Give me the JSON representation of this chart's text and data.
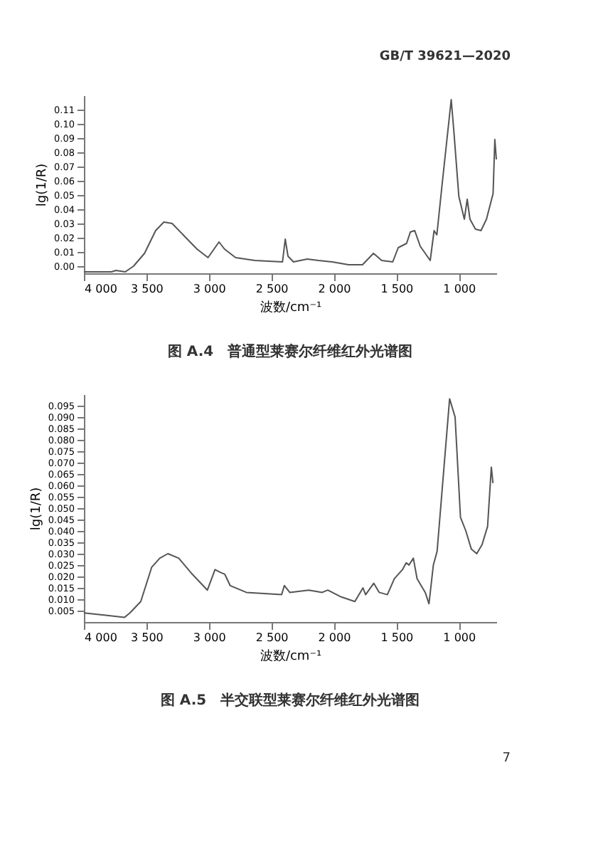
{
  "chart_data": [
    {
      "type": "line",
      "title": "图 A.4　普通型莱赛尔纤维红外光谱图",
      "xlabel": "波数/cm⁻¹",
      "ylabel": "lg(1/R)",
      "annotations": [
        "GB/T 39621—2020"
      ],
      "xlim": [
        4000,
        700
      ],
      "xticks": [
        {
          "value": 4000,
          "label": "4 000"
        },
        {
          "value": 3500,
          "label": "3 500"
        },
        {
          "value": 3000,
          "label": "3 000"
        },
        {
          "value": 2500,
          "label": "2 500"
        },
        {
          "value": 2000,
          "label": "2 000"
        },
        {
          "value": 1500,
          "label": "1 500"
        },
        {
          "value": 1000,
          "label": "1 000"
        }
      ],
      "ylim": [
        -0.005,
        0.12
      ],
      "yticks": [
        {
          "value": 0,
          "label": "0.00"
        },
        {
          "value": 0.01,
          "label": "0.01"
        },
        {
          "value": 0.02,
          "label": "0.02"
        },
        {
          "value": 0.03,
          "label": "0.03"
        },
        {
          "value": 0.04,
          "label": "0.04"
        },
        {
          "value": 0.05,
          "label": "0.05"
        },
        {
          "value": 0.06,
          "label": "0.06"
        },
        {
          "value": 0.07,
          "label": "0.07"
        },
        {
          "value": 0.08,
          "label": "0.08"
        },
        {
          "value": 0.09,
          "label": "0.09"
        },
        {
          "value": 0.1,
          "label": "0.10"
        },
        {
          "value": 0.11,
          "label": "0.11"
        }
      ],
      "grid": false,
      "marker": "none",
      "line_style": "solid",
      "series": [
        {
          "color": "#555555",
          "x": [
            4000,
            3779,
            3744,
            3669,
            3603,
            3515,
            3426,
            3360,
            3294,
            3206,
            3095,
            3007,
            2919,
            2875,
            2786,
            2632,
            2411,
            2389,
            2367,
            2323,
            2213,
            2124,
            2014,
            1882,
            1771,
            1683,
            1617,
            1529,
            1485,
            1418,
            1388,
            1353,
            1309,
            1229,
            1198,
            1176,
            1132,
            1061,
            1040,
            1000,
            956,
            933,
            911,
            867,
            823,
            779,
            726,
            712,
            700
          ],
          "values": [
            -0.004,
            -0.004,
            -0.003,
            -0.004,
            0.0,
            0.009,
            0.025,
            0.031,
            0.03,
            0.022,
            0.012,
            0.006,
            0.017,
            0.012,
            0.006,
            0.004,
            0.003,
            0.019,
            0.007,
            0.003,
            0.005,
            0.004,
            0.003,
            0.001,
            0.001,
            0.009,
            0.004,
            0.003,
            0.013,
            0.016,
            0.024,
            0.025,
            0.014,
            0.004,
            0.025,
            0.022,
            0.059,
            0.117,
            0.095,
            0.049,
            0.033,
            0.047,
            0.033,
            0.026,
            0.025,
            0.033,
            0.051,
            0.089,
            0.075
          ]
        }
      ]
    },
    {
      "type": "line",
      "title": "图 A.5　半交联型莱赛尔纤维红外光谱图",
      "xlabel": "波数/cm⁻¹",
      "ylabel": "lg(1/R)",
      "annotations": [
        "7"
      ],
      "xlim": [
        4000,
        700
      ],
      "xticks": [
        {
          "value": 4000,
          "label": "4 000"
        },
        {
          "value": 3500,
          "label": "3 500"
        },
        {
          "value": 3000,
          "label": "3 000"
        },
        {
          "value": 2500,
          "label": "2 500"
        },
        {
          "value": 2000,
          "label": "2 000"
        },
        {
          "value": 1500,
          "label": "1 500"
        },
        {
          "value": 1000,
          "label": "1 000"
        }
      ],
      "ylim": [
        0,
        0.1
      ],
      "yticks": [
        0.005,
        {
          "value": 0.01,
          "label": "0.010"
        },
        0.015,
        {
          "value": 0.02,
          "label": "0.020"
        },
        0.025,
        {
          "value": 0.03,
          "label": "0.030"
        },
        0.035,
        {
          "value": 0.04,
          "label": "0.040"
        },
        0.045,
        {
          "value": 0.05,
          "label": "0.050"
        },
        0.055,
        {
          "value": 0.06,
          "label": "0.060"
        },
        0.065,
        {
          "value": 0.07,
          "label": "0.070"
        },
        0.075,
        {
          "value": 0.08,
          "label": "0.080"
        },
        0.085,
        {
          "value": 0.09,
          "label": "0.090"
        },
        0.095
      ],
      "grid": false,
      "marker": "none",
      "line_style": "solid",
      "series": [
        {
          "color": "#555555",
          "x": [
            4000,
            3827,
            3675,
            3632,
            3545,
            3458,
            3393,
            3328,
            3241,
            3133,
            3012,
            2951,
            2916,
            2873,
            2830,
            2700,
            2418,
            2396,
            2353,
            2201,
            2093,
            2049,
            1941,
            1832,
            1767,
            1746,
            1681,
            1637,
            1572,
            1516,
            1451,
            1421,
            1399,
            1364,
            1334,
            1269,
            1239,
            1204,
            1174,
            1074,
            1030,
            987,
            944,
            900,
            857,
            814,
            770,
            740,
            727
          ],
          "values": [
            0.004,
            0.003,
            0.002,
            0.004,
            0.009,
            0.024,
            0.028,
            0.03,
            0.028,
            0.021,
            0.014,
            0.023,
            0.022,
            0.021,
            0.016,
            0.013,
            0.012,
            0.016,
            0.013,
            0.014,
            0.013,
            0.014,
            0.011,
            0.009,
            0.015,
            0.012,
            0.017,
            0.013,
            0.012,
            0.019,
            0.023,
            0.026,
            0.025,
            0.028,
            0.019,
            0.013,
            0.008,
            0.025,
            0.031,
            0.098,
            0.09,
            0.046,
            0.04,
            0.032,
            0.03,
            0.034,
            0.042,
            0.068,
            0.061
          ]
        }
      ]
    }
  ]
}
